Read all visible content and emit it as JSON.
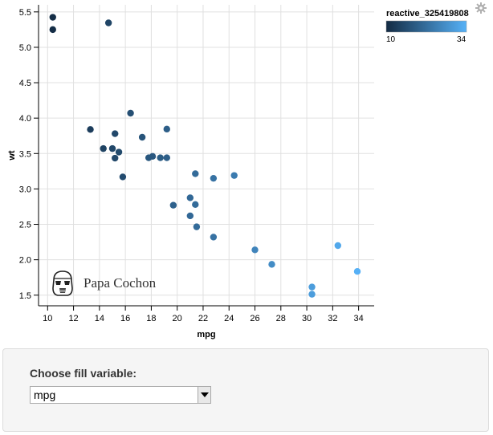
{
  "chart_data": {
    "type": "scatter",
    "xlabel": "mpg",
    "ylabel": "wt",
    "xlim": [
      9.3,
      35.2
    ],
    "ylim": [
      1.35,
      5.6
    ],
    "xticks": [
      "10",
      "12",
      "14",
      "16",
      "18",
      "20",
      "22",
      "24",
      "26",
      "28",
      "30",
      "32",
      "34"
    ],
    "yticks": [
      "1.5",
      "2.0",
      "2.5",
      "3.0",
      "3.5",
      "4.0",
      "4.5",
      "5.0",
      "5.5"
    ],
    "xtick_values": [
      10,
      12,
      14,
      16,
      18,
      20,
      22,
      24,
      26,
      28,
      30,
      32,
      34
    ],
    "ytick_values": [
      1.5,
      2.0,
      2.5,
      3.0,
      3.5,
      4.0,
      4.5,
      5.0,
      5.5
    ],
    "grid": true,
    "points": [
      {
        "x": 21.0,
        "y": 2.62
      },
      {
        "x": 21.0,
        "y": 2.875
      },
      {
        "x": 22.8,
        "y": 2.32
      },
      {
        "x": 21.4,
        "y": 3.215
      },
      {
        "x": 18.7,
        "y": 3.44
      },
      {
        "x": 18.1,
        "y": 3.46
      },
      {
        "x": 14.3,
        "y": 3.57
      },
      {
        "x": 24.4,
        "y": 3.19
      },
      {
        "x": 22.8,
        "y": 3.15
      },
      {
        "x": 19.2,
        "y": 3.44
      },
      {
        "x": 17.8,
        "y": 3.44
      },
      {
        "x": 16.4,
        "y": 4.07
      },
      {
        "x": 17.3,
        "y": 3.73
      },
      {
        "x": 15.2,
        "y": 3.78
      },
      {
        "x": 10.4,
        "y": 5.25
      },
      {
        "x": 10.4,
        "y": 5.424
      },
      {
        "x": 14.7,
        "y": 5.345
      },
      {
        "x": 32.4,
        "y": 2.2
      },
      {
        "x": 30.4,
        "y": 1.615
      },
      {
        "x": 33.9,
        "y": 1.835
      },
      {
        "x": 21.5,
        "y": 2.465
      },
      {
        "x": 15.5,
        "y": 3.52
      },
      {
        "x": 15.2,
        "y": 3.435
      },
      {
        "x": 13.3,
        "y": 3.84
      },
      {
        "x": 19.2,
        "y": 3.845
      },
      {
        "x": 27.3,
        "y": 1.935
      },
      {
        "x": 26.0,
        "y": 2.14
      },
      {
        "x": 30.4,
        "y": 1.513
      },
      {
        "x": 15.8,
        "y": 3.17
      },
      {
        "x": 19.7,
        "y": 2.77
      },
      {
        "x": 15.0,
        "y": 3.57
      },
      {
        "x": 21.4,
        "y": 2.78
      }
    ],
    "legend": {
      "title": "reactive_325419808",
      "min_label": "10",
      "max_label": "34",
      "min_value": 10,
      "max_value": 34,
      "color_low": "#132b43",
      "color_high": "#56b1f7",
      "placement": "top-right"
    }
  },
  "watermark": {
    "text": "Papa Cochon",
    "icon": "stormtrooper-helmet-icon"
  },
  "settings_icon": "gear-icon",
  "controls": {
    "label": "Choose fill variable:",
    "select_value": "mpg",
    "arrow_icon": "chevron-down-icon"
  }
}
